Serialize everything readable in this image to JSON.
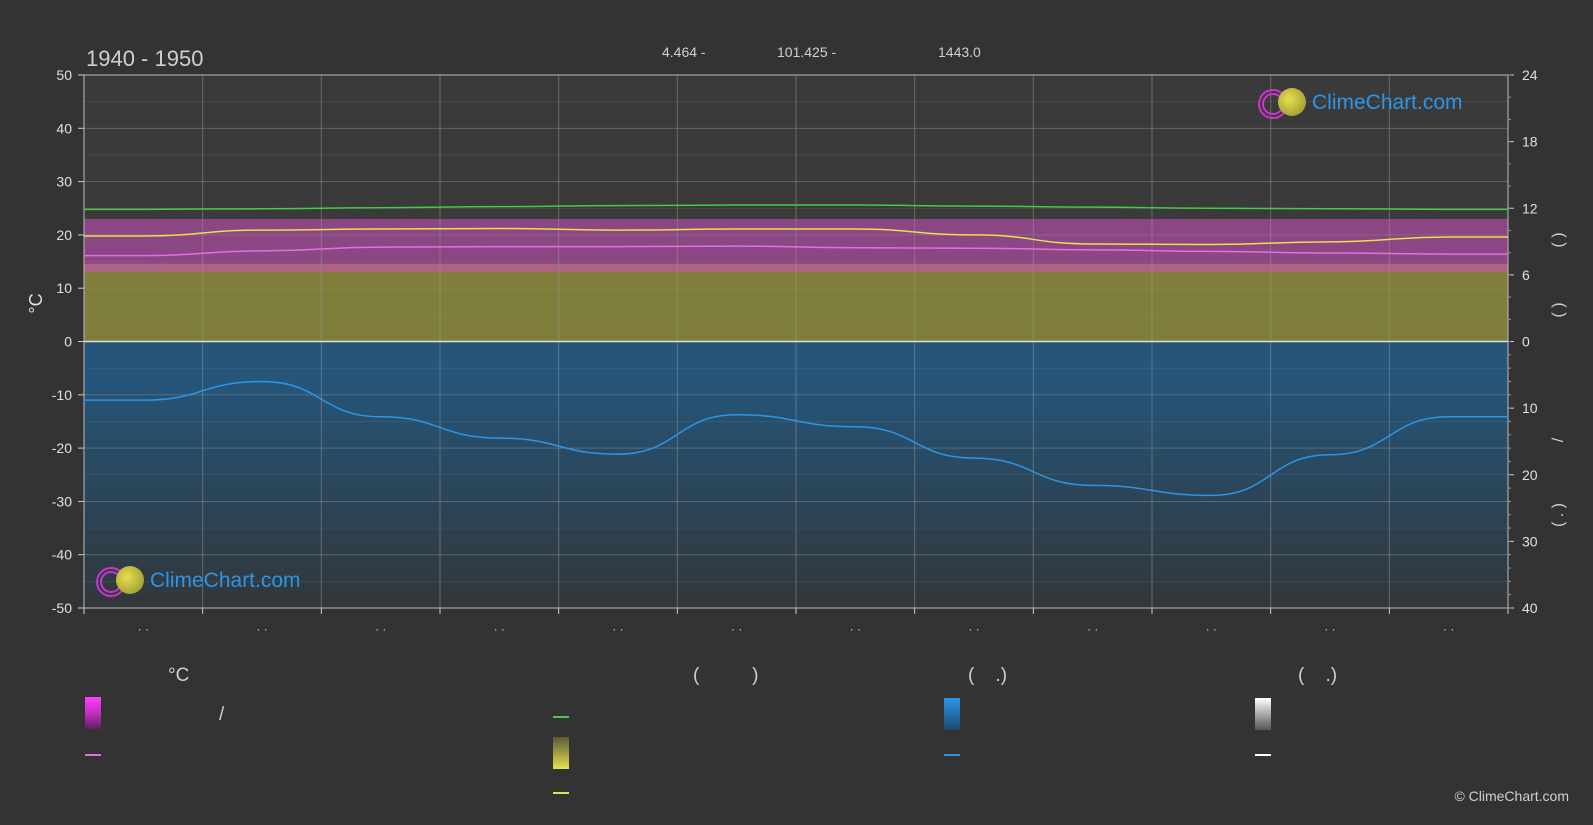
{
  "header": {
    "period": "1940 - 1950",
    "lat": "4.464 -",
    "lon": "101.425 -",
    "elevation": "1443.0"
  },
  "brand": {
    "name": "ClimeChart.com",
    "copyright": "© ClimeChart.com",
    "color": "#2d95e6"
  },
  "legend": {
    "col1_head": "°C",
    "col1_sep": "/",
    "col2_head": "(          )",
    "col3_head": "(    .)",
    "col4_head": "(    .)"
  },
  "axes": {
    "left_unit": "°C",
    "right_labels": [
      "(    )",
      "(    )",
      "/",
      "(  .  )"
    ]
  },
  "chart_data": {
    "type": "area",
    "x_months": 12,
    "left_axis": {
      "label": "°C",
      "range": [
        -50,
        50
      ],
      "ticks": [
        50,
        40,
        30,
        20,
        10,
        0,
        -10,
        -20,
        -30,
        -40,
        -50
      ]
    },
    "right_axis_top": {
      "range": [
        0,
        24
      ],
      "ticks": [
        24,
        18,
        12,
        6,
        0
      ]
    },
    "right_axis_bottom": {
      "range": [
        0,
        40
      ],
      "ticks": [
        10,
        20,
        30,
        40
      ]
    },
    "series": [
      {
        "key": "temp_max_line",
        "color": "#44cc44",
        "values": [
          24.8,
          24.9,
          25.1,
          25.3,
          25.5,
          25.6,
          25.6,
          25.4,
          25.2,
          25.0,
          24.9,
          24.8
        ]
      },
      {
        "key": "temp_mean_daily",
        "color": "#e8e050",
        "values": [
          19.8,
          20.9,
          21.1,
          21.2,
          20.9,
          21.1,
          21.1,
          20.0,
          18.3,
          18.2,
          18.7,
          19.6
        ]
      },
      {
        "key": "temp_min_line",
        "color": "#e070e0",
        "values": [
          16.1,
          17.0,
          17.7,
          17.8,
          17.8,
          17.9,
          17.6,
          17.5,
          17.2,
          16.9,
          16.6,
          16.4
        ]
      },
      {
        "key": "precip_mm",
        "color": "#2d95e6",
        "values": [
          8.8,
          6.0,
          11.3,
          14.5,
          16.9,
          11.0,
          12.8,
          17.5,
          21.6,
          23.1,
          17.0,
          11.3
        ]
      }
    ],
    "bands": {
      "temp_range_top": 23,
      "temp_range_bottom": 13,
      "sunshine_hours": 7.0
    },
    "colors": {
      "temp_band": "#d050c0",
      "sunshine_band": "#8c8c3c",
      "precip_band": "#1f5f8f"
    },
    "grid": true
  }
}
